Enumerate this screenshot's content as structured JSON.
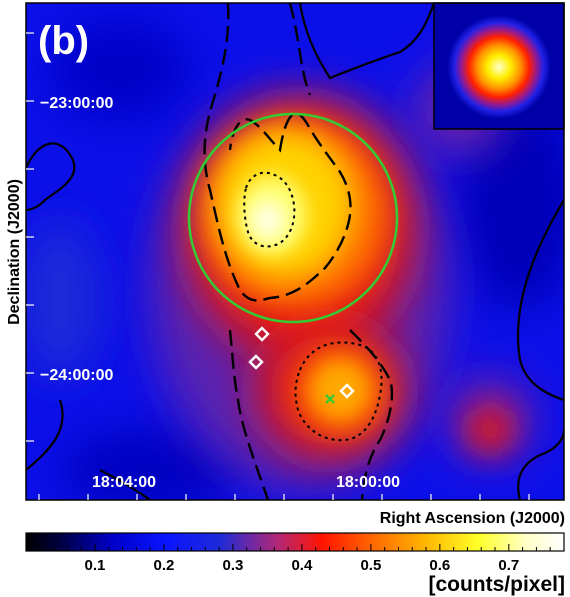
{
  "panel_label": "(b)",
  "axes": {
    "xlabel": "Right Ascension (J2000)",
    "ylabel": "Declination (J2000)",
    "ra_ticks": [
      "18:04:00",
      "18:00:00"
    ],
    "dec_ticks": [
      "−23:00:00",
      "−24:00:00"
    ]
  },
  "colorbar": {
    "unit_label": "[counts/pixel]",
    "tick_labels": [
      "0.1",
      "0.2",
      "0.3",
      "0.4",
      "0.5",
      "0.6",
      "0.7"
    ],
    "range": [
      0.0,
      0.78
    ],
    "colormap": [
      "#000000",
      "#00003c",
      "#0000c8",
      "#0a14ff",
      "#1e2ad8",
      "#b42874",
      "#ff1400",
      "#ff6400",
      "#ffb400",
      "#ffff28",
      "#ffffc8",
      "#ffffff"
    ]
  },
  "colors": {
    "circle": "#33cc33",
    "cross": "#33cc33",
    "diamond": "#ffffff",
    "contour": "#000000"
  },
  "icons": [
    "psf-inset",
    "green-circle-region",
    "green-cross-marker",
    "white-diamond-marker"
  ]
}
